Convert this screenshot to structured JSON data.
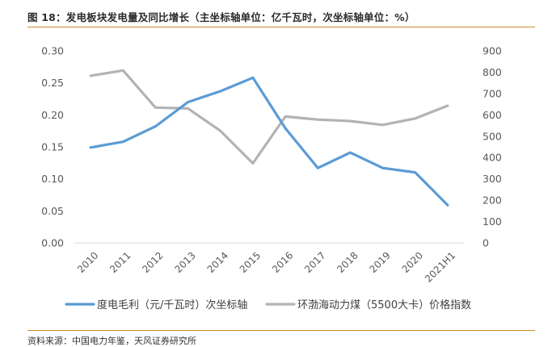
{
  "figure": {
    "title": "图 18：发电板块发电量及同比增长（主坐标轴单位：亿千瓦时，次坐标轴单位：%）",
    "source": "资料来源：中国电力年鉴，天风证券研究所"
  },
  "chart_data": {
    "type": "line",
    "categories": [
      "2010",
      "2011",
      "2012",
      "2013",
      "2014",
      "2015",
      "2016",
      "2017",
      "2018",
      "2019",
      "2020",
      "2021H1"
    ],
    "left_axis": {
      "ylim": [
        0,
        0.3
      ],
      "ticks": [
        "0.00",
        "0.05",
        "0.10",
        "0.15",
        "0.20",
        "0.25",
        "0.30"
      ]
    },
    "right_axis": {
      "ylim": [
        0,
        900
      ],
      "ticks": [
        "0",
        "100",
        "200",
        "300",
        "400",
        "500",
        "600",
        "700",
        "800",
        "900"
      ]
    },
    "series": [
      {
        "name": "度电毛利（元/千瓦时）次坐标轴",
        "axis": "left",
        "color": "#5b9bd5",
        "values": [
          0.149,
          0.158,
          0.182,
          0.22,
          0.237,
          0.258,
          0.179,
          0.117,
          0.141,
          0.117,
          0.11,
          0.059
        ]
      },
      {
        "name": "环渤海动力煤（5500大卡）价格指数",
        "axis": "right",
        "color": "#b3b3b3",
        "values": [
          783,
          808,
          634,
          630,
          525,
          373,
          592,
          578,
          571,
          553,
          583,
          643
        ]
      }
    ],
    "grid": false,
    "legend": "bottom"
  }
}
